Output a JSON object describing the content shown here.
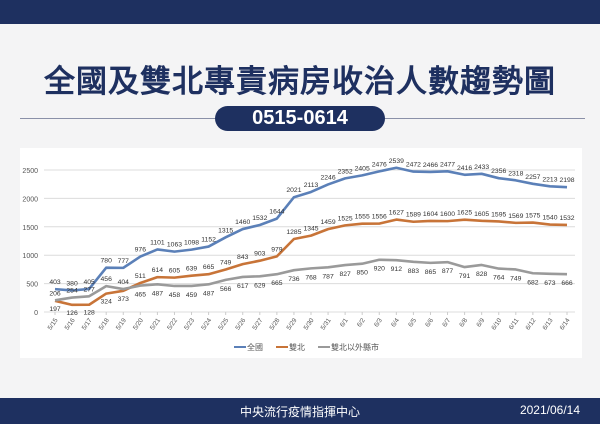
{
  "header": {
    "title": "全國及雙北專責病房收治人數趨勢圖",
    "range": "0515-0614"
  },
  "footer": {
    "org": "中央流行疫情指揮中心",
    "date": "2021/06/14"
  },
  "chart_data": {
    "type": "line",
    "title": "全國及雙北專責病房收治人數趨勢圖",
    "xlabel": "",
    "ylabel": "",
    "ylim": [
      0,
      2500
    ],
    "yticks": [
      0,
      500,
      1000,
      1500,
      2000,
      2500
    ],
    "grid": true,
    "legend": "bottom",
    "categories": [
      "5/15",
      "5/16",
      "5/17",
      "5/18",
      "5/19",
      "5/20",
      "5/21",
      "5/22",
      "5/23",
      "5/24",
      "5/25",
      "5/26",
      "5/27",
      "5/28",
      "5/29",
      "5/30",
      "5/31",
      "6/1",
      "6/2",
      "6/3",
      "6/4",
      "6/5",
      "6/6",
      "6/7",
      "6/8",
      "6/9",
      "6/10",
      "6/11",
      "6/12",
      "6/13",
      "6/14"
    ],
    "series": [
      {
        "name": "全國",
        "color": "#5b80b8",
        "values": [
          403,
          380,
          405,
          780,
          777,
          976,
          1101,
          1063,
          1098,
          1152,
          1315,
          1460,
          1532,
          1644,
          2021,
          2113,
          2246,
          2352,
          2405,
          2476,
          2539,
          2472,
          2466,
          2477,
          2416,
          2433,
          2356,
          2318,
          2257,
          2213,
          2198
        ]
      },
      {
        "name": "雙北",
        "color": "#c87438",
        "values": [
          197,
          126,
          128,
          324,
          373,
          511,
          614,
          605,
          639,
          665,
          749,
          843,
          903,
          979,
          1285,
          1345,
          1459,
          1525,
          1555,
          1556,
          1627,
          1589,
          1604,
          1600,
          1625,
          1605,
          1595,
          1569,
          1575,
          1540,
          1532
        ]
      },
      {
        "name": "雙北以外縣市",
        "color": "#9a9a9a",
        "values": [
          206,
          254,
          277,
          456,
          404,
          465,
          487,
          458,
          459,
          487,
          566,
          617,
          629,
          665,
          736,
          768,
          787,
          827,
          850,
          920,
          912,
          883,
          865,
          877,
          791,
          828,
          764,
          749,
          682,
          673,
          666
        ]
      }
    ]
  }
}
